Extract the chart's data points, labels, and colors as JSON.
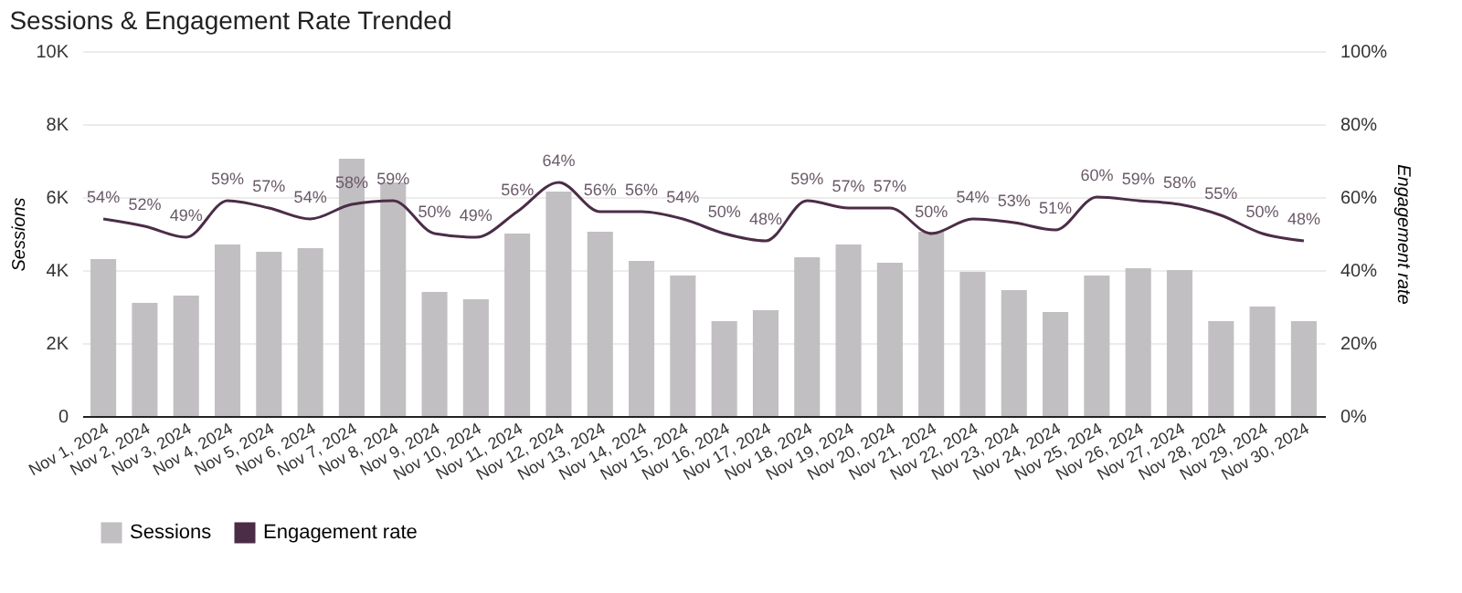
{
  "chart_data": {
    "type": "bar",
    "title": "Sessions & Engagement Rate Trended",
    "ylabel": "Sessions",
    "y2label": "Engagement rate",
    "categories": [
      "Nov 1, 2024",
      "Nov 2, 2024",
      "Nov 3, 2024",
      "Nov 4, 2024",
      "Nov 5, 2024",
      "Nov 6, 2024",
      "Nov 7, 2024",
      "Nov 8, 2024",
      "Nov 9, 2024",
      "Nov 10, 2024",
      "Nov 11, 2024",
      "Nov 12, 2024",
      "Nov 13, 2024",
      "Nov 14, 2024",
      "Nov 15, 2024",
      "Nov 16, 2024",
      "Nov 17, 2024",
      "Nov 18, 2024",
      "Nov 19, 2024",
      "Nov 20, 2024",
      "Nov 21, 2024",
      "Nov 22, 2024",
      "Nov 23, 2024",
      "Nov 24, 2024",
      "Nov 25, 2024",
      "Nov 26, 2024",
      "Nov 27, 2024",
      "Nov 28, 2024",
      "Nov 29, 2024",
      "Nov 30, 2024"
    ],
    "series": [
      {
        "name": "Sessions",
        "color": "#c2bfc2",
        "values": [
          4300,
          3100,
          3300,
          4700,
          4500,
          4600,
          7050,
          6400,
          3400,
          3200,
          5000,
          6150,
          5050,
          4250,
          3850,
          2600,
          2900,
          4350,
          4700,
          4200,
          5050,
          3950,
          3450,
          2850,
          3850,
          4050,
          4000,
          2600,
          3000,
          2600
        ]
      },
      {
        "name": "Engagement rate",
        "type": "line",
        "axis": "y2",
        "color": "#4b2d47",
        "values": [
          54,
          52,
          49,
          59,
          57,
          54,
          58,
          59,
          50,
          49,
          56,
          64,
          56,
          56,
          54,
          50,
          48,
          59,
          57,
          57,
          50,
          54,
          53,
          51,
          60,
          59,
          58,
          55,
          50,
          48
        ],
        "value_labels": [
          "54%",
          "52%",
          "49%",
          "59%",
          "57%",
          "54%",
          "58%",
          "59%",
          "50%",
          "49%",
          "56%",
          "64%",
          "56%",
          "56%",
          "54%",
          "50%",
          "48%",
          "59%",
          "57%",
          "57%",
          "50%",
          "54%",
          "53%",
          "51%",
          "60%",
          "59%",
          "58%",
          "55%",
          "50%",
          "48%"
        ]
      }
    ],
    "ylim": [
      0,
      10000
    ],
    "yticks": [
      {
        "value": 0,
        "label": "0"
      },
      {
        "value": 2000,
        "label": "2K"
      },
      {
        "value": 4000,
        "label": "4K"
      },
      {
        "value": 6000,
        "label": "6K"
      },
      {
        "value": 8000,
        "label": "8K"
      },
      {
        "value": 10000,
        "label": "10K"
      }
    ],
    "y2lim": [
      0,
      100
    ],
    "y2ticks": [
      {
        "value": 0,
        "label": "0%"
      },
      {
        "value": 20,
        "label": "20%"
      },
      {
        "value": 40,
        "label": "40%"
      },
      {
        "value": 60,
        "label": "60%"
      },
      {
        "value": 80,
        "label": "80%"
      },
      {
        "value": 100,
        "label": "100%"
      }
    ],
    "grid": "y",
    "legend": "bottom left"
  }
}
